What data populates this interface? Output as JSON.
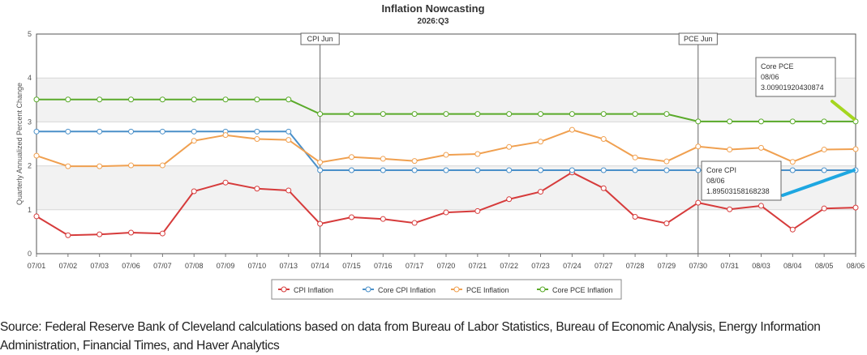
{
  "chart_data": {
    "type": "line",
    "title": "Inflation Nowcasting",
    "subtitle": "2026:Q3",
    "ylabel": "Quarterly Annualized Percent Change",
    "xlabel": "",
    "ylim": [
      0,
      5
    ],
    "yticks": [
      "0",
      "1",
      "2",
      "3",
      "4",
      "5"
    ],
    "grid": "horizontal bands",
    "legend_position": "bottom",
    "categories": [
      "07/01",
      "07/02",
      "07/03",
      "07/06",
      "07/07",
      "07/08",
      "07/09",
      "07/10",
      "07/13",
      "07/14",
      "07/15",
      "07/16",
      "07/17",
      "07/20",
      "07/21",
      "07/22",
      "07/23",
      "07/24",
      "07/27",
      "07/28",
      "07/29",
      "07/30",
      "07/31",
      "08/03",
      "08/04",
      "08/05",
      "08/06"
    ],
    "series": [
      {
        "name": "CPI Inflation",
        "color": "#d63b3b",
        "values": [
          0.85,
          0.42,
          0.44,
          0.48,
          0.46,
          1.42,
          1.62,
          1.48,
          1.44,
          0.68,
          0.83,
          0.79,
          0.7,
          0.94,
          0.97,
          1.24,
          1.41,
          1.85,
          1.49,
          0.84,
          0.69,
          1.16,
          1.01,
          1.09,
          0.55,
          1.03,
          1.05
        ]
      },
      {
        "name": "Core CPI Inflation",
        "color": "#4a90c9",
        "values": [
          2.78,
          2.78,
          2.78,
          2.78,
          2.78,
          2.78,
          2.78,
          2.78,
          2.78,
          1.9,
          1.9,
          1.9,
          1.9,
          1.9,
          1.9,
          1.9,
          1.9,
          1.9,
          1.9,
          1.9,
          1.9,
          1.9,
          1.9,
          1.9,
          1.9,
          1.9,
          1.9
        ]
      },
      {
        "name": "PCE Inflation",
        "color": "#f0a050",
        "values": [
          2.23,
          1.99,
          1.99,
          2.01,
          2.01,
          2.57,
          2.7,
          2.61,
          2.59,
          2.08,
          2.2,
          2.16,
          2.11,
          2.25,
          2.27,
          2.43,
          2.55,
          2.82,
          2.61,
          2.19,
          2.1,
          2.44,
          2.37,
          2.41,
          2.09,
          2.37,
          2.38
        ]
      },
      {
        "name": "Core PCE Inflation",
        "color": "#5aaa2a",
        "values": [
          3.51,
          3.51,
          3.51,
          3.51,
          3.51,
          3.51,
          3.51,
          3.51,
          3.51,
          3.18,
          3.18,
          3.18,
          3.18,
          3.18,
          3.18,
          3.18,
          3.18,
          3.18,
          3.18,
          3.18,
          3.18,
          3.01,
          3.01,
          3.01,
          3.01,
          3.01,
          3.01
        ]
      }
    ],
    "events": [
      {
        "label": "CPI Jun",
        "x": "07/14"
      },
      {
        "label": "PCE Jun",
        "x": "07/30"
      }
    ],
    "tooltips": [
      {
        "series": "Core PCE",
        "date": "08/06",
        "value": "3.00901920430874"
      },
      {
        "series": "Core CPI",
        "date": "08/06",
        "value": "1.89503158168238"
      }
    ]
  },
  "source_text": "Source: Federal Reserve Bank of Cleveland calculations based on data from Bureau of Labor Statistics, Bureau of Economic Analysis, Energy Information Administration, Financial Times, and Haver Analytics"
}
